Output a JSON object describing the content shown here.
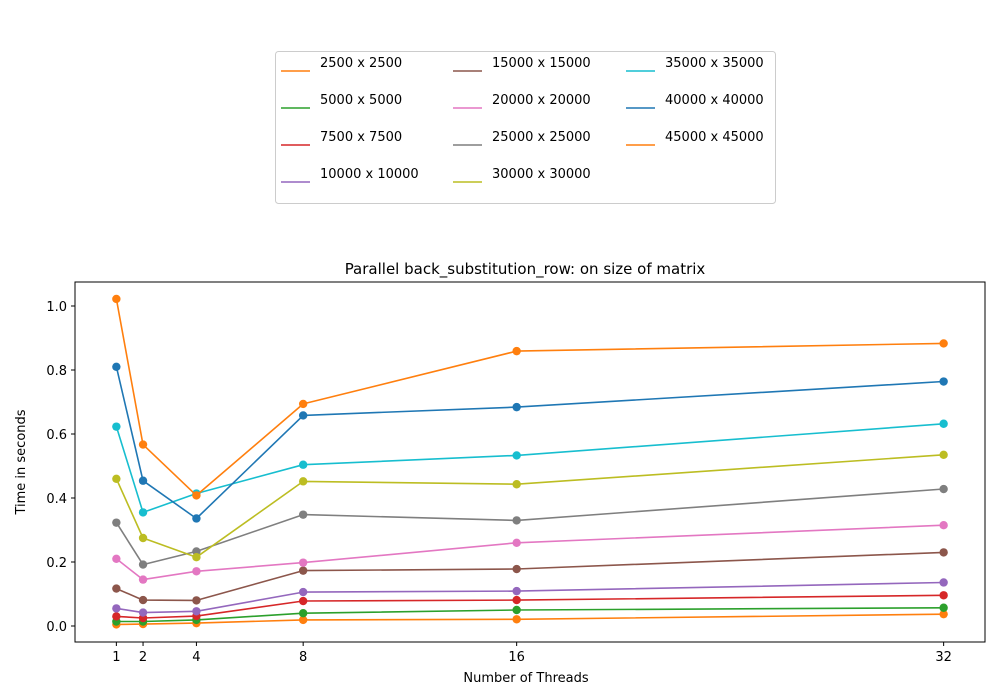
{
  "chart_data": {
    "type": "line",
    "title": "Parallel back_substitution_row: on size of matrix",
    "xlabel": "Number of Threads",
    "ylabel": "Time in seconds",
    "x": [
      1,
      2,
      4,
      8,
      16,
      32
    ],
    "xlim": [
      -0.55,
      33.55
    ],
    "ylim": [
      -0.05,
      1.075
    ],
    "xticks": [
      1,
      2,
      4,
      8,
      16,
      32
    ],
    "yticks": [
      0.0,
      0.2,
      0.4,
      0.6,
      0.8,
      1.0
    ],
    "ytick_labels": [
      "0.0",
      "0.2",
      "0.4",
      "0.6",
      "0.8",
      "1.0"
    ],
    "grid": false,
    "legend_position": "above the plot, centered, 3 columns",
    "series": [
      {
        "name": "2500 x 2500",
        "color": "#ff7f0e",
        "values": [
          0.005,
          0.006,
          0.009,
          0.019,
          0.021,
          0.037
        ]
      },
      {
        "name": "5000 x 5000",
        "color": "#2ca02c",
        "values": [
          0.014,
          0.014,
          0.019,
          0.04,
          0.05,
          0.057
        ]
      },
      {
        "name": "7500 x 7500",
        "color": "#d62728",
        "values": [
          0.03,
          0.025,
          0.031,
          0.078,
          0.081,
          0.096
        ]
      },
      {
        "name": "10000 x 10000",
        "color": "#9467bd",
        "values": [
          0.055,
          0.042,
          0.046,
          0.106,
          0.109,
          0.136
        ]
      },
      {
        "name": "15000 x 15000",
        "color": "#8c564b",
        "values": [
          0.117,
          0.081,
          0.08,
          0.173,
          0.178,
          0.23
        ]
      },
      {
        "name": "20000 x 20000",
        "color": "#e377c2",
        "values": [
          0.21,
          0.145,
          0.171,
          0.198,
          0.26,
          0.315
        ]
      },
      {
        "name": "25000 x 25000",
        "color": "#7f7f7f",
        "values": [
          0.323,
          0.192,
          0.233,
          0.348,
          0.33,
          0.428
        ]
      },
      {
        "name": "30000 x 30000",
        "color": "#bcbd22",
        "values": [
          0.46,
          0.275,
          0.215,
          0.452,
          0.443,
          0.535
        ]
      },
      {
        "name": "35000 x 35000",
        "color": "#17becf",
        "values": [
          0.623,
          0.355,
          0.414,
          0.504,
          0.533,
          0.632
        ]
      },
      {
        "name": "40000 x 40000",
        "color": "#1f77b4",
        "values": [
          0.81,
          0.454,
          0.336,
          0.658,
          0.684,
          0.764
        ]
      },
      {
        "name": "45000 x 45000",
        "color": "#ff7f0e",
        "values": [
          1.022,
          0.567,
          0.408,
          0.694,
          0.859,
          0.883
        ]
      }
    ]
  }
}
